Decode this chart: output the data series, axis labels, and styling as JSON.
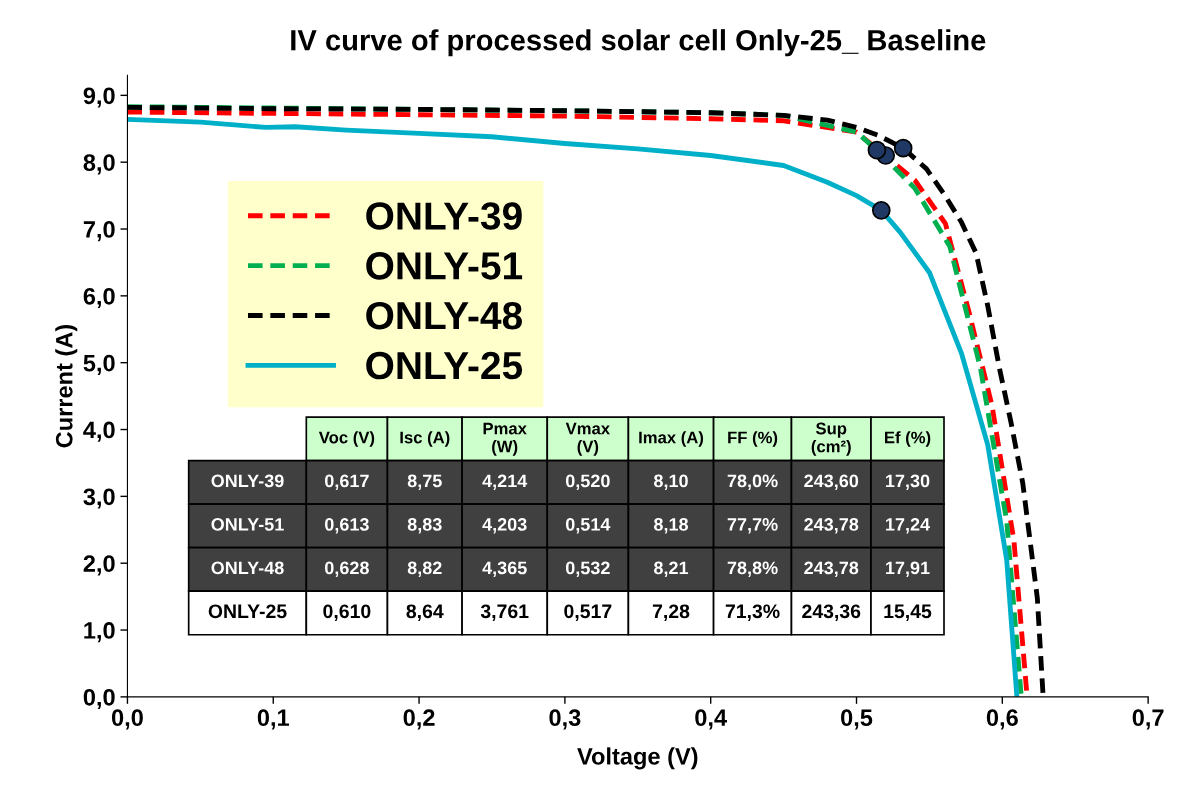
{
  "chart_data": {
    "type": "line",
    "title": "IV curve of processed solar cell Only-25_ Baseline",
    "xlabel": "Voltage (V)",
    "ylabel": "Current (A)",
    "xlim": [
      0,
      0.7
    ],
    "ylim": [
      0,
      9.3
    ],
    "xticks": [
      {
        "value": 0,
        "label": "0,0"
      },
      {
        "value": 0.1,
        "label": "0,1"
      },
      {
        "value": 0.2,
        "label": "0,2"
      },
      {
        "value": 0.3,
        "label": "0,3"
      },
      {
        "value": 0.4,
        "label": "0,4"
      },
      {
        "value": 0.5,
        "label": "0,5"
      },
      {
        "value": 0.6,
        "label": "0,6"
      },
      {
        "value": 0.7,
        "label": "0,7"
      }
    ],
    "yticks": [
      {
        "value": 0,
        "label": "0,0"
      },
      {
        "value": 1,
        "label": "1,0"
      },
      {
        "value": 2,
        "label": "2,0"
      },
      {
        "value": 3,
        "label": "3,0"
      },
      {
        "value": 4,
        "label": "4,0"
      },
      {
        "value": 5,
        "label": "5,0"
      },
      {
        "value": 6,
        "label": "6,0"
      },
      {
        "value": 7,
        "label": "7,0"
      },
      {
        "value": 8,
        "label": "8,0"
      },
      {
        "value": 9,
        "label": "9,0"
      }
    ],
    "grid": false,
    "legend": "top left",
    "marker": "none",
    "series": [
      {
        "name": "ONLY-39",
        "color": "#ff0000",
        "line_style": "dashed",
        "x": [
          0,
          0.1,
          0.2,
          0.3,
          0.4,
          0.45,
          0.5,
          0.54,
          0.561,
          0.577,
          0.593,
          0.608,
          0.617
        ],
        "values": [
          8.75,
          8.73,
          8.71,
          8.69,
          8.65,
          8.62,
          8.45,
          7.73,
          7.08,
          5.77,
          4.35,
          2.33,
          0
        ]
      },
      {
        "name": "ONLY-51",
        "color": "#00b050",
        "line_style": "dashed",
        "x": [
          0,
          0.1,
          0.2,
          0.3,
          0.4,
          0.45,
          0.5,
          0.514,
          0.54,
          0.564,
          0.585,
          0.603,
          0.613
        ],
        "values": [
          8.83,
          8.81,
          8.79,
          8.77,
          8.74,
          8.7,
          8.45,
          8.18,
          7.61,
          6.74,
          4.92,
          2.63,
          0
        ]
      },
      {
        "name": "ONLY-48",
        "color": "#000000",
        "line_style": "dashed",
        "x": [
          0,
          0.1,
          0.2,
          0.3,
          0.4,
          0.45,
          0.48,
          0.5,
          0.515,
          0.532,
          0.548,
          0.561,
          0.572,
          0.582,
          0.59,
          0.598,
          0.606,
          0.614,
          0.624,
          0.628
        ],
        "values": [
          8.82,
          8.8,
          8.79,
          8.77,
          8.74,
          8.7,
          8.63,
          8.52,
          8.4,
          8.21,
          7.9,
          7.49,
          7.1,
          6.64,
          5.85,
          4.92,
          4.1,
          3.2,
          1.48,
          0
        ]
      },
      {
        "name": "ONLY-25",
        "color": "#00b0c8",
        "line_style": "solid",
        "x": [
          0,
          0.05,
          0.095,
          0.115,
          0.15,
          0.2,
          0.25,
          0.3,
          0.35,
          0.4,
          0.45,
          0.48,
          0.5,
          0.517,
          0.53,
          0.55,
          0.572,
          0.59,
          0.603,
          0.61
        ],
        "values": [
          8.64,
          8.6,
          8.52,
          8.53,
          8.48,
          8.43,
          8.38,
          8.28,
          8.2,
          8.1,
          7.95,
          7.7,
          7.5,
          7.28,
          6.95,
          6.35,
          5.14,
          3.77,
          2.05,
          0
        ]
      },
      {
        "type": "scatter",
        "marker": "circle",
        "color": "#1f3864",
        "x": [
          0.52,
          0.514,
          0.532,
          0.517
        ],
        "values": [
          8.1,
          8.18,
          8.21,
          7.28
        ]
      }
    ],
    "annotations": [
      "Voc (V)",
      "Isc (A)",
      "Pmax\n(W)",
      "Vmax\n(V)",
      "Imax (A)",
      "FF (%)",
      "Sup\n(cm²)",
      "Ef (%)",
      "ONLY-39",
      "0,617",
      "8,75",
      "4,214",
      "0,520",
      "8,10",
      "78,0%",
      "243,60",
      "17,30",
      "ONLY-51",
      "0,613",
      "8,83",
      "4,203",
      "0,514",
      "8,18",
      "77,7%",
      "243,78",
      "17,24",
      "ONLY-48",
      "0,628",
      "8,82",
      "4,365",
      "0,532",
      "8,21",
      "78,8%",
      "243,78",
      "17,91",
      "ONLY-25",
      "0,610",
      "8,64",
      "3,761",
      "0,517",
      "7,28",
      "71,3%",
      "243,36",
      "15,45"
    ]
  }
}
